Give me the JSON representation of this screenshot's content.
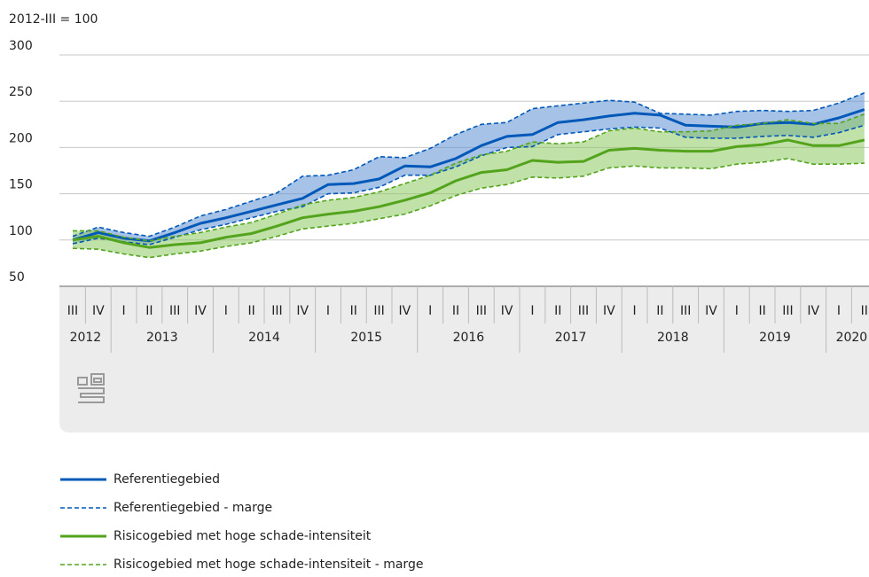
{
  "chart_data": {
    "type": "line",
    "y_label": "2012-III = 100",
    "categories": [
      "III",
      "IV",
      "I",
      "II",
      "III",
      "IV",
      "I",
      "II",
      "III",
      "IV",
      "I",
      "II",
      "III",
      "IV",
      "I",
      "II",
      "III",
      "IV",
      "I",
      "II",
      "III",
      "IV",
      "I",
      "II",
      "III",
      "IV",
      "I",
      "II",
      "III",
      "IV",
      "I",
      "II"
    ],
    "years": [
      "2012",
      "2013",
      "2014",
      "2015",
      "2016",
      "2017",
      "2018",
      "2019",
      "2020"
    ],
    "ylim": [
      50,
      300
    ],
    "yticks": [
      50,
      100,
      150,
      200,
      250,
      300
    ],
    "grid": true,
    "series": [
      {
        "name": "Referentiegebied",
        "color": "#0058b8",
        "values": [
          100,
          108,
          102,
          99,
          108,
          118,
          124,
          131,
          138,
          145,
          160,
          161,
          166,
          180,
          179,
          188,
          202,
          212,
          214,
          227,
          230,
          234,
          237,
          235,
          224,
          223,
          222,
          226,
          227,
          225,
          232,
          241
        ]
      },
      {
        "name": "Referentiegebied - marge",
        "color": "#0058b8",
        "dashed": true,
        "band": "#5d8fd4",
        "values": [
          104,
          114,
          108,
          104,
          114,
          126,
          133,
          142,
          151,
          169,
          170,
          176,
          190,
          189,
          199,
          214,
          225,
          227,
          242,
          245,
          248,
          251,
          249,
          237,
          236,
          235,
          239,
          240,
          239,
          240,
          248,
          259
        ],
        "lower": [
          96,
          102,
          98,
          95,
          103,
          111,
          117,
          124,
          131,
          136,
          150,
          151,
          157,
          170,
          170,
          179,
          191,
          200,
          201,
          214,
          217,
          220,
          222,
          221,
          211,
          210,
          210,
          212,
          213,
          211,
          216,
          224
        ]
      },
      {
        "name": "Risicogebied met hoge schade-intensiteit",
        "color": "#53a31d",
        "values": [
          100,
          104,
          97,
          92,
          95,
          97,
          103,
          107,
          115,
          124,
          128,
          131,
          136,
          143,
          151,
          164,
          173,
          176,
          186,
          184,
          185,
          197,
          199,
          197,
          196,
          196,
          201,
          203,
          208,
          202,
          202,
          208
        ]
      },
      {
        "name": "Risicogebied met hoge schade-intensiteit - marge",
        "color": "#53a31d",
        "dashed": true,
        "band": "#8cc95e",
        "values": [
          110,
          110,
          103,
          99,
          104,
          108,
          114,
          119,
          128,
          138,
          143,
          146,
          152,
          161,
          170,
          183,
          192,
          196,
          206,
          204,
          206,
          218,
          221,
          217,
          217,
          218,
          224,
          226,
          230,
          226,
          226,
          236
        ],
        "lower": [
          91,
          90,
          85,
          81,
          85,
          88,
          93,
          97,
          104,
          112,
          115,
          118,
          123,
          128,
          137,
          148,
          156,
          160,
          168,
          167,
          169,
          178,
          180,
          178,
          178,
          177,
          182,
          184,
          188,
          182,
          182,
          183
        ]
      }
    ]
  }
}
